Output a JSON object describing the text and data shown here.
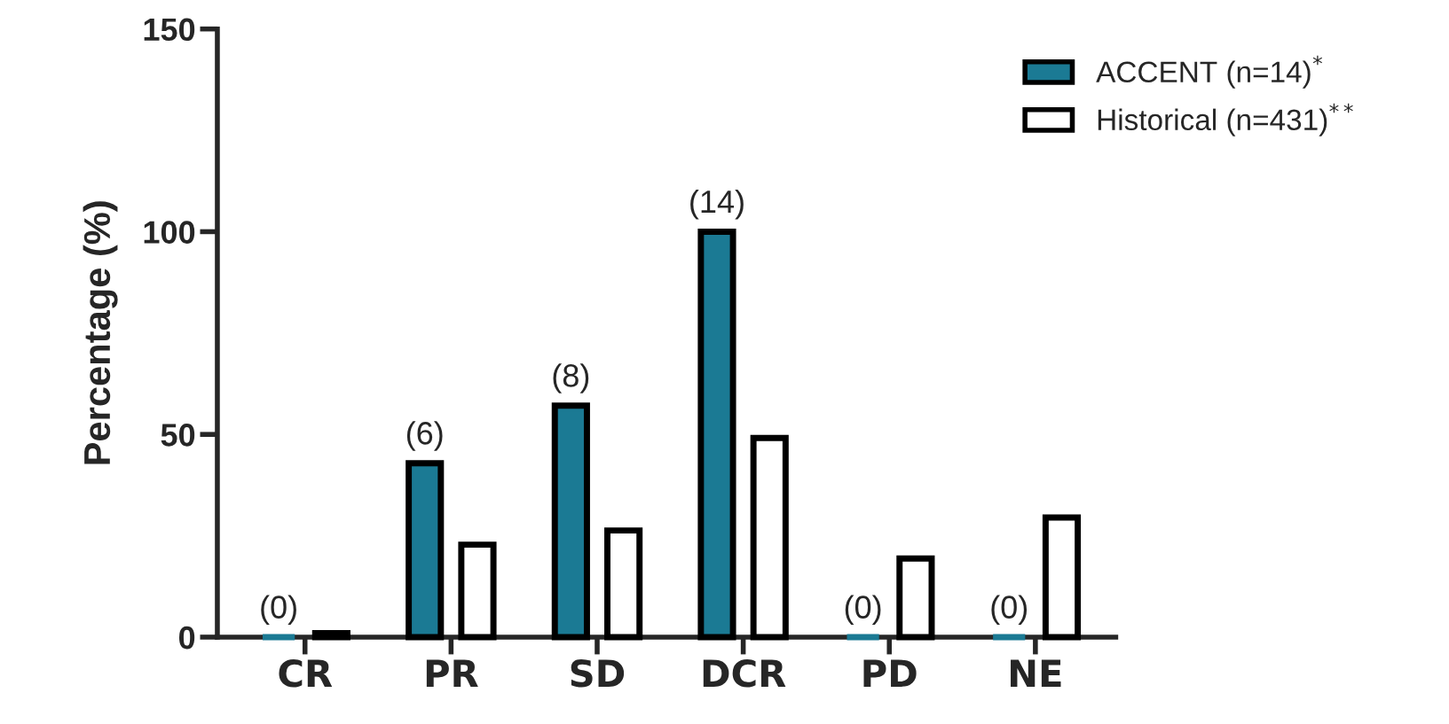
{
  "chart_data": {
    "type": "bar",
    "ylabel": "Percentage (%)",
    "categories": [
      "CR",
      "PR",
      "SD",
      "DCR",
      "PD",
      "NE"
    ],
    "series": [
      {
        "name": "ACCENT (n=14)$^{*}$",
        "color": "#1b7a94",
        "values": [
          0,
          42.9,
          57.1,
          100,
          0,
          0
        ]
      },
      {
        "name": "Historical (n=431)$^{**}$",
        "color": "#ffffff",
        "values": [
          1,
          22.8,
          26.3,
          49.1,
          19.4,
          29.5
        ]
      }
    ],
    "annotations": [
      "(0)",
      "(6)",
      "(8)",
      "(14)",
      "(0)",
      "(0)"
    ],
    "ylim": [
      0,
      150
    ],
    "yticks": [
      0,
      50,
      100,
      150
    ],
    "grid": false,
    "legend": "top right"
  }
}
